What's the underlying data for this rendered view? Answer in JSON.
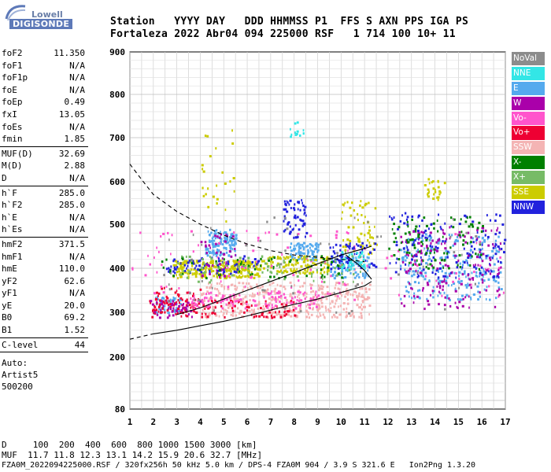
{
  "logo": {
    "top": "Lowell",
    "bottom": "DIGISONDE"
  },
  "header": {
    "row1": "Station   YYYY DAY   DDD HHMMSS P1  FFS S AXN PPS IGA PS",
    "row2": "Fortaleza 2022 Abr04 094 225000 RSF   1 714 100 10+ 11"
  },
  "params": {
    "group1": [
      {
        "label": "foF2",
        "value": "11.350"
      },
      {
        "label": "foF1",
        "value": "N/A"
      },
      {
        "label": "foF1p",
        "value": "N/A"
      },
      {
        "label": "foE",
        "value": "N/A"
      },
      {
        "label": "foEp",
        "value": "0.49"
      },
      {
        "label": "fxI",
        "value": "13.05"
      },
      {
        "label": "foEs",
        "value": "N/A"
      },
      {
        "label": "fmin",
        "value": "1.85"
      }
    ],
    "group2": [
      {
        "label": "MUF(D)",
        "value": "32.69"
      },
      {
        "label": "M(D)",
        "value": "2.88"
      },
      {
        "label": "D",
        "value": "N/A"
      }
    ],
    "group3": [
      {
        "label": "h`F",
        "value": "285.0"
      },
      {
        "label": "h`F2",
        "value": "285.0"
      },
      {
        "label": "h`E",
        "value": "N/A"
      },
      {
        "label": "h`Es",
        "value": "N/A"
      }
    ],
    "group4": [
      {
        "label": "hmF2",
        "value": "371.5"
      },
      {
        "label": "hmF1",
        "value": "N/A"
      },
      {
        "label": "hmE",
        "value": "110.0"
      },
      {
        "label": "yF2",
        "value": "62.6"
      },
      {
        "label": "yF1",
        "value": "N/A"
      },
      {
        "label": "yE",
        "value": "20.0"
      },
      {
        "label": "B0",
        "value": "69.2"
      },
      {
        "label": "B1",
        "value": "1.52"
      }
    ],
    "group5": [
      {
        "label": "C-level",
        "value": "44"
      }
    ],
    "autoscaling": [
      "Auto:",
      "Artist5",
      "500200"
    ]
  },
  "legend": [
    {
      "label": "NoVal",
      "color": "#8c8c8c"
    },
    {
      "label": "NNE",
      "color": "#33e6e6"
    },
    {
      "label": "E",
      "color": "#55aaee"
    },
    {
      "label": "W",
      "color": "#aa00aa"
    },
    {
      "label": "Vo-",
      "color": "#ff55cc"
    },
    {
      "label": "Vo+",
      "color": "#ee0033"
    },
    {
      "label": "SSW",
      "color": "#f4b4b4"
    },
    {
      "label": "X-",
      "color": "#008000"
    },
    {
      "label": "X+",
      "color": "#77bb66"
    },
    {
      "label": "SSE",
      "color": "#cccc00"
    },
    {
      "label": "NNW",
      "color": "#2222dd"
    }
  ],
  "chart_data": {
    "type": "scatter",
    "xlim": [
      1,
      17
    ],
    "ylim": [
      80,
      900
    ],
    "x_ticks": [
      1,
      2,
      3,
      4,
      5,
      6,
      7,
      8,
      9,
      10,
      11,
      12,
      13,
      14,
      15,
      16,
      17
    ],
    "y_ticks": [
      80,
      200,
      300,
      400,
      500,
      600,
      700,
      800,
      900
    ],
    "grid": true,
    "legend_position": "right",
    "clusters": [
      {
        "name": "E",
        "x": [
          4.2,
          5.5
        ],
        "y": [
          430,
          490
        ],
        "n": 130
      },
      {
        "name": "E",
        "x": [
          7.8,
          9.0
        ],
        "y": [
          420,
          460
        ],
        "n": 80
      },
      {
        "name": "E",
        "x": [
          2.0,
          3.2
        ],
        "y": [
          300,
          340
        ],
        "n": 60
      },
      {
        "name": "E",
        "x": [
          12.5,
          16.8
        ],
        "y": [
          330,
          480
        ],
        "n": 260
      },
      {
        "name": "E",
        "x": [
          9.5,
          11.2
        ],
        "y": [
          380,
          430
        ],
        "n": 80
      },
      {
        "name": "SSE",
        "x": [
          2.8,
          6.5
        ],
        "y": [
          380,
          420
        ],
        "n": 260
      },
      {
        "name": "SSE",
        "x": [
          6.5,
          9.5
        ],
        "y": [
          390,
          430
        ],
        "n": 120
      },
      {
        "name": "SSE",
        "x": [
          10.0,
          11.5
        ],
        "y": [
          430,
          560
        ],
        "n": 60
      },
      {
        "name": "SSE",
        "x": [
          13.5,
          14.5
        ],
        "y": [
          560,
          610
        ],
        "n": 25
      },
      {
        "name": "SSE",
        "x": [
          4.0,
          5.5
        ],
        "y": [
          490,
          720
        ],
        "n": 25
      },
      {
        "name": "SSW",
        "x": [
          4.0,
          11.2
        ],
        "y": [
          290,
          370
        ],
        "n": 420
      },
      {
        "name": "Vo+",
        "x": [
          1.8,
          8.0
        ],
        "y": [
          290,
          330
        ],
        "n": 110
      },
      {
        "name": "Vo+",
        "x": [
          2.0,
          4.0
        ],
        "y": [
          300,
          360
        ],
        "n": 60
      },
      {
        "name": "Vo-",
        "x": [
          3.5,
          9.0
        ],
        "y": [
          310,
          350
        ],
        "n": 120
      },
      {
        "name": "Vo-",
        "x": [
          1.0,
          17.0
        ],
        "y": [
          330,
          490
        ],
        "n": 120
      },
      {
        "name": "NNW",
        "x": [
          7.5,
          8.5
        ],
        "y": [
          470,
          560
        ],
        "n": 60
      },
      {
        "name": "NNW",
        "x": [
          12.0,
          17.0
        ],
        "y": [
          380,
          530
        ],
        "n": 150
      },
      {
        "name": "NNW",
        "x": [
          2.5,
          6.5
        ],
        "y": [
          390,
          430
        ],
        "n": 70
      },
      {
        "name": "NNW",
        "x": [
          9.5,
          11.5
        ],
        "y": [
          400,
          460
        ],
        "n": 70
      },
      {
        "name": "W",
        "x": [
          12.5,
          16.8
        ],
        "y": [
          310,
          500
        ],
        "n": 160
      },
      {
        "name": "W",
        "x": [
          1.8,
          4.0
        ],
        "y": [
          290,
          330
        ],
        "n": 40
      },
      {
        "name": "W",
        "x": [
          4.0,
          5.5
        ],
        "y": [
          380,
          480
        ],
        "n": 40
      },
      {
        "name": "X-",
        "x": [
          12.0,
          16.0
        ],
        "y": [
          400,
          520
        ],
        "n": 100
      },
      {
        "name": "X-",
        "x": [
          2.0,
          10.0
        ],
        "y": [
          380,
          430
        ],
        "n": 60
      },
      {
        "name": "X+",
        "x": [
          3.0,
          11.0
        ],
        "y": [
          370,
          430
        ],
        "n": 80
      },
      {
        "name": "NNE",
        "x": [
          10.0,
          11.0
        ],
        "y": [
          400,
          440
        ],
        "n": 40
      },
      {
        "name": "NNE",
        "x": [
          7.8,
          8.4
        ],
        "y": [
          700,
          740
        ],
        "n": 12
      },
      {
        "name": "NoVal",
        "x": [
          2.0,
          16.0
        ],
        "y": [
          300,
          520
        ],
        "n": 60
      }
    ],
    "curves": [
      {
        "name": "dashed-upper",
        "style": "dashed",
        "x": [
          1.0,
          1.5,
          2.0,
          3.0,
          4.0,
          5.0,
          6.0,
          7.0,
          8.0,
          9.0,
          10.0,
          10.5,
          11.0
        ],
        "y": [
          640,
          605,
          570,
          530,
          500,
          475,
          455,
          440,
          430,
          425,
          420,
          418,
          415
        ]
      },
      {
        "name": "dashed-lower",
        "style": "dashed",
        "x": [
          1.0,
          1.5,
          2.0
        ],
        "y": [
          240,
          246,
          252
        ]
      },
      {
        "name": "solid-lower",
        "style": "solid",
        "x": [
          2.0,
          3.0,
          4.0,
          5.0,
          6.0,
          7.0,
          8.0,
          9.0,
          10.0,
          11.0,
          11.3
        ],
        "y": [
          252,
          260,
          270,
          280,
          292,
          305,
          318,
          330,
          345,
          360,
          370
        ]
      },
      {
        "name": "solid-upper",
        "style": "solid",
        "x": [
          3.0,
          4.0,
          5.0,
          6.0,
          7.0,
          8.0,
          9.0,
          10.0,
          11.0,
          11.3
        ],
        "y": [
          295,
          310,
          330,
          350,
          370,
          390,
          410,
          430,
          445,
          450
        ]
      },
      {
        "name": "solid-hook",
        "style": "solid",
        "x": [
          10.2,
          10.7,
          11.0,
          11.3
        ],
        "y": [
          430,
          410,
          395,
          375
        ]
      }
    ]
  },
  "footer": {
    "line1": "D     100  200  400  600  800 1000 1500 3000 [km]",
    "line2": "MUF  11.7 11.8 12.3 13.1 14.2 15.9 20.6 32.7 [MHz]",
    "line3": "FZA0M_2022094225000.RSF / 320fx256h 50 kHz 5.0 km / DPS-4 FZA0M 904 / 3.9 S 321.6 E   Ion2Png 1.3.20"
  }
}
